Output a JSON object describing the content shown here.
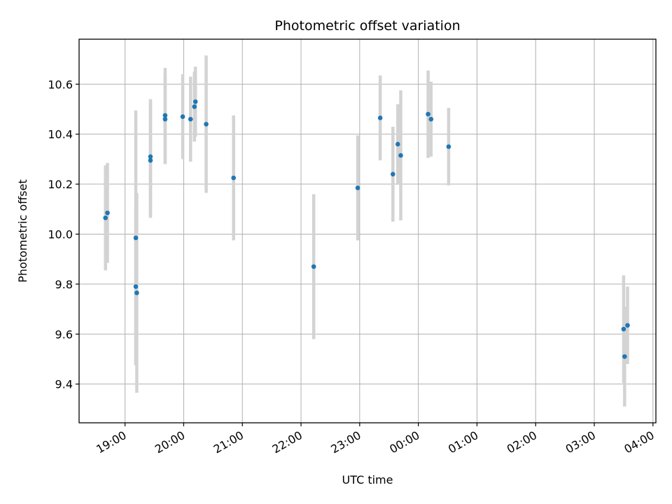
{
  "chart_data": {
    "type": "scatter",
    "title": "Photometric offset variation",
    "xlabel": "UTC time",
    "ylabel": "Photometric offset",
    "x_unit": "UTC time of day (HH:MM, spanning into next day)",
    "x_ticks": [
      "19:00",
      "20:00",
      "21:00",
      "22:00",
      "23:00",
      "00:00",
      "01:00",
      "02:00",
      "03:00",
      "04:00"
    ],
    "y_ticks": [
      "9.4",
      "9.6",
      "9.8",
      "10.0",
      "10.2",
      "10.4",
      "10.6"
    ],
    "xlim": [
      "18:13",
      "04:03"
    ],
    "ylim": [
      9.245,
      10.78
    ],
    "grid": true,
    "legend": "none",
    "colors": {
      "point": "#1f77b4",
      "errorbar": "#d3d3d3",
      "grid": "#b0b0b0"
    },
    "points": [
      {
        "x": "18:40",
        "y": 10.065,
        "err": 0.21
      },
      {
        "x": "18:42",
        "y": 10.085,
        "err": 0.2
      },
      {
        "x": "19:11",
        "y": 9.985,
        "err": 0.51
      },
      {
        "x": "19:11",
        "y": 9.79,
        "err": 0.31
      },
      {
        "x": "19:12",
        "y": 9.765,
        "err": 0.4
      },
      {
        "x": "19:26",
        "y": 10.31,
        "err": 0.23
      },
      {
        "x": "19:26",
        "y": 10.295,
        "err": 0.23
      },
      {
        "x": "19:41",
        "y": 10.46,
        "err": 0.18
      },
      {
        "x": "19:41",
        "y": 10.475,
        "err": 0.19
      },
      {
        "x": "19:59",
        "y": 10.47,
        "err": 0.17
      },
      {
        "x": "20:07",
        "y": 10.46,
        "err": 0.17
      },
      {
        "x": "20:11",
        "y": 10.51,
        "err": 0.14
      },
      {
        "x": "20:12",
        "y": 10.53,
        "err": 0.14
      },
      {
        "x": "20:23",
        "y": 10.44,
        "err": 0.275
      },
      {
        "x": "20:51",
        "y": 10.225,
        "err": 0.25
      },
      {
        "x": "22:13",
        "y": 9.87,
        "err": 0.29
      },
      {
        "x": "22:58",
        "y": 10.185,
        "err": 0.21
      },
      {
        "x": "23:21",
        "y": 10.465,
        "err": 0.17
      },
      {
        "x": "23:34",
        "y": 10.24,
        "err": 0.19
      },
      {
        "x": "23:39",
        "y": 10.36,
        "err": 0.16
      },
      {
        "x": "23:42",
        "y": 10.315,
        "err": 0.26
      },
      {
        "x": "00:10",
        "y": 10.48,
        "err": 0.175
      },
      {
        "x": "00:13",
        "y": 10.46,
        "err": 0.15
      },
      {
        "x": "00:31",
        "y": 10.35,
        "err": 0.155
      },
      {
        "x": "03:30",
        "y": 9.62,
        "err": 0.215
      },
      {
        "x": "03:31",
        "y": 9.51,
        "err": 0.2
      },
      {
        "x": "03:34",
        "y": 9.635,
        "err": 0.155
      }
    ]
  }
}
